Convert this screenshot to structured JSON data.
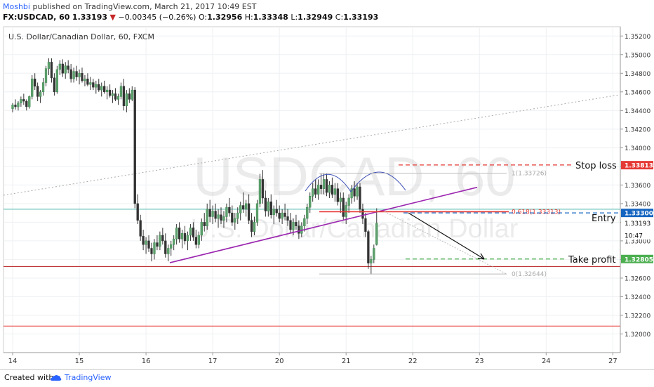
{
  "header": {
    "user": "Moshbi",
    "published_text": "published on TradingView.com, March 21, 2017 10:49 EST",
    "symbol": "FX:USDCAD, 60",
    "last": "1.33193",
    "change": "−0.00345 (−0.26%)",
    "o_label": "O:",
    "o": "1.32956",
    "h_label": "H:",
    "h": "1.33348",
    "l_label": "L:",
    "l": "1.32949",
    "c_label": "C:",
    "c": "1.33193"
  },
  "footer": {
    "created_with": "Created with",
    "brand": "TradingView"
  },
  "chart_data": {
    "type": "candlestick",
    "title": "U.S. Dollar/Canadian Dollar, 60, FXCM",
    "watermark_symbol": "USDCAD, 60",
    "watermark_name": "U.S. Dollar/Canadian Dollar",
    "ylim": [
      1.318,
      1.353
    ],
    "y_ticks": [
      "1.35200",
      "1.35000",
      "1.34800",
      "1.34600",
      "1.34400",
      "1.34200",
      "1.34000",
      "1.33800",
      "1.33600",
      "1.33400",
      "1.33200",
      "1.33000",
      "1.32800",
      "1.32600",
      "1.32400",
      "1.32200",
      "1.32000"
    ],
    "x_labels": [
      {
        "label": "14",
        "bar": 0
      },
      {
        "label": "15",
        "bar": 24
      },
      {
        "label": "16",
        "bar": 48
      },
      {
        "label": "17",
        "bar": 72
      },
      {
        "label": "20",
        "bar": 96
      },
      {
        "label": "21",
        "bar": 120
      },
      {
        "label": "22",
        "bar": 144
      },
      {
        "label": "23",
        "bar": 168
      },
      {
        "label": "24",
        "bar": 192
      },
      {
        "label": "27",
        "bar": 216
      }
    ],
    "candles": [
      [
        1.3442,
        1.3448,
        1.3438,
        1.3446
      ],
      [
        1.3446,
        1.3452,
        1.3441,
        1.3444
      ],
      [
        1.3444,
        1.345,
        1.344,
        1.3448
      ],
      [
        1.3448,
        1.3455,
        1.3444,
        1.3452
      ],
      [
        1.3452,
        1.3458,
        1.3446,
        1.345
      ],
      [
        1.345,
        1.3452,
        1.344,
        1.3444
      ],
      [
        1.3444,
        1.3456,
        1.3442,
        1.3455
      ],
      [
        1.3455,
        1.3478,
        1.3452,
        1.3474
      ],
      [
        1.3474,
        1.348,
        1.3462,
        1.3466
      ],
      [
        1.3466,
        1.347,
        1.345,
        1.3455
      ],
      [
        1.3455,
        1.3462,
        1.3448,
        1.346
      ],
      [
        1.346,
        1.3475,
        1.3456,
        1.347
      ],
      [
        1.347,
        1.3488,
        1.3466,
        1.3485
      ],
      [
        1.3485,
        1.3496,
        1.3478,
        1.3492
      ],
      [
        1.3492,
        1.3496,
        1.347,
        1.3475
      ],
      [
        1.3475,
        1.348,
        1.3456,
        1.346
      ],
      [
        1.346,
        1.3488,
        1.3458,
        1.3484
      ],
      [
        1.3484,
        1.3494,
        1.3478,
        1.349
      ],
      [
        1.349,
        1.3495,
        1.3476,
        1.348
      ],
      [
        1.348,
        1.3492,
        1.3474,
        1.3488
      ],
      [
        1.3488,
        1.3494,
        1.348,
        1.3484
      ],
      [
        1.3484,
        1.349,
        1.347,
        1.3474
      ],
      [
        1.3474,
        1.3486,
        1.347,
        1.3482
      ],
      [
        1.3482,
        1.3488,
        1.3472,
        1.3476
      ],
      [
        1.3476,
        1.3484,
        1.3468,
        1.348
      ],
      [
        1.348,
        1.3486,
        1.347,
        1.3472
      ],
      [
        1.3472,
        1.3478,
        1.3466,
        1.3474
      ],
      [
        1.3474,
        1.348,
        1.3466,
        1.3468
      ],
      [
        1.3468,
        1.3476,
        1.3462,
        1.347
      ],
      [
        1.347,
        1.3474,
        1.3462,
        1.3465
      ],
      [
        1.3465,
        1.3472,
        1.3458,
        1.3468
      ],
      [
        1.3468,
        1.3474,
        1.346,
        1.3462
      ],
      [
        1.3462,
        1.347,
        1.3455,
        1.3466
      ],
      [
        1.3466,
        1.3472,
        1.3458,
        1.346
      ],
      [
        1.346,
        1.3466,
        1.3452,
        1.3462
      ],
      [
        1.3462,
        1.3468,
        1.3454,
        1.3456
      ],
      [
        1.3456,
        1.3462,
        1.3448,
        1.3458
      ],
      [
        1.3458,
        1.3464,
        1.345,
        1.3452
      ],
      [
        1.3452,
        1.3458,
        1.3446,
        1.3455
      ],
      [
        1.3455,
        1.347,
        1.3452,
        1.3466
      ],
      [
        1.3466,
        1.3474,
        1.344,
        1.3445
      ],
      [
        1.3445,
        1.3462,
        1.3438,
        1.3458
      ],
      [
        1.3458,
        1.3464,
        1.3448,
        1.3452
      ],
      [
        1.3452,
        1.3466,
        1.345,
        1.3462
      ],
      [
        1.3462,
        1.3465,
        1.3335,
        1.334
      ],
      [
        1.334,
        1.335,
        1.3318,
        1.3322
      ],
      [
        1.3322,
        1.3328,
        1.33,
        1.3305
      ],
      [
        1.3305,
        1.3312,
        1.329,
        1.3296
      ],
      [
        1.3296,
        1.3304,
        1.3286,
        1.33
      ],
      [
        1.33,
        1.3306,
        1.3288,
        1.3292
      ],
      [
        1.3292,
        1.3298,
        1.3278,
        1.3286
      ],
      [
        1.3286,
        1.3302,
        1.328,
        1.3298
      ],
      [
        1.3298,
        1.3306,
        1.329,
        1.3294
      ],
      [
        1.3294,
        1.331,
        1.329,
        1.3306
      ],
      [
        1.3306,
        1.3314,
        1.3296,
        1.33
      ],
      [
        1.33,
        1.3308,
        1.3282,
        1.3286
      ],
      [
        1.3286,
        1.3296,
        1.3278,
        1.3292
      ],
      [
        1.3292,
        1.33,
        1.3284,
        1.3296
      ],
      [
        1.3296,
        1.3306,
        1.329,
        1.3302
      ],
      [
        1.3302,
        1.3318,
        1.3296,
        1.3314
      ],
      [
        1.3314,
        1.332,
        1.3298,
        1.3302
      ],
      [
        1.3302,
        1.3312,
        1.3292,
        1.3308
      ],
      [
        1.3308,
        1.3316,
        1.3296,
        1.33
      ],
      [
        1.33,
        1.331,
        1.329,
        1.3306
      ],
      [
        1.3306,
        1.3318,
        1.33,
        1.3314
      ],
      [
        1.3314,
        1.332,
        1.33,
        1.3304
      ],
      [
        1.3304,
        1.3312,
        1.3292,
        1.3296
      ],
      [
        1.3296,
        1.331,
        1.3292,
        1.3306
      ],
      [
        1.3306,
        1.3324,
        1.33,
        1.332
      ],
      [
        1.332,
        1.333,
        1.331,
        1.3316
      ],
      [
        1.3316,
        1.334,
        1.3312,
        1.3334
      ],
      [
        1.3334,
        1.3344,
        1.332,
        1.3326
      ],
      [
        1.3326,
        1.3338,
        1.3318,
        1.3332
      ],
      [
        1.3332,
        1.334,
        1.332,
        1.3324
      ],
      [
        1.3324,
        1.3334,
        1.3314,
        1.3328
      ],
      [
        1.3328,
        1.3336,
        1.3318,
        1.3322
      ],
      [
        1.3322,
        1.3332,
        1.3314,
        1.3326
      ],
      [
        1.3326,
        1.334,
        1.332,
        1.3336
      ],
      [
        1.3336,
        1.3346,
        1.3326,
        1.333
      ],
      [
        1.333,
        1.3338,
        1.3316,
        1.332
      ],
      [
        1.332,
        1.333,
        1.3312,
        1.3324
      ],
      [
        1.3324,
        1.3336,
        1.3318,
        1.333
      ],
      [
        1.333,
        1.3342,
        1.3322,
        1.3338
      ],
      [
        1.3338,
        1.3352,
        1.333,
        1.3334
      ],
      [
        1.3334,
        1.3344,
        1.3326,
        1.334
      ],
      [
        1.334,
        1.335,
        1.3318,
        1.3322
      ],
      [
        1.3322,
        1.333,
        1.3304,
        1.331
      ],
      [
        1.331,
        1.3326,
        1.3306,
        1.332
      ],
      [
        1.332,
        1.3344,
        1.3316,
        1.334
      ],
      [
        1.334,
        1.3372,
        1.3336,
        1.3366
      ],
      [
        1.3366,
        1.3376,
        1.334,
        1.3346
      ],
      [
        1.3346,
        1.3354,
        1.3326,
        1.3332
      ],
      [
        1.3332,
        1.3346,
        1.3326,
        1.3342
      ],
      [
        1.3342,
        1.335,
        1.3324,
        1.3328
      ],
      [
        1.3328,
        1.3338,
        1.3318,
        1.3334
      ],
      [
        1.3334,
        1.3344,
        1.3326,
        1.333
      ],
      [
        1.333,
        1.3338,
        1.332,
        1.3324
      ],
      [
        1.3324,
        1.3334,
        1.3318,
        1.333
      ],
      [
        1.333,
        1.334,
        1.3322,
        1.3326
      ],
      [
        1.3326,
        1.3334,
        1.3316,
        1.3322
      ],
      [
        1.3322,
        1.333,
        1.3308,
        1.3312
      ],
      [
        1.3312,
        1.3324,
        1.3306,
        1.332
      ],
      [
        1.332,
        1.3328,
        1.3312,
        1.3316
      ],
      [
        1.3316,
        1.3322,
        1.3302,
        1.3308
      ],
      [
        1.3308,
        1.332,
        1.3304,
        1.3316
      ],
      [
        1.3316,
        1.3328,
        1.331,
        1.3324
      ],
      [
        1.3324,
        1.334,
        1.3318,
        1.3336
      ],
      [
        1.3336,
        1.3352,
        1.333,
        1.3348
      ],
      [
        1.3348,
        1.3362,
        1.3342,
        1.3356
      ],
      [
        1.3356,
        1.3366,
        1.3346,
        1.335
      ],
      [
        1.335,
        1.3366,
        1.3344,
        1.336
      ],
      [
        1.336,
        1.3372,
        1.335,
        1.3356
      ],
      [
        1.3356,
        1.3372,
        1.335,
        1.3366
      ],
      [
        1.3366,
        1.3372,
        1.3348,
        1.3352
      ],
      [
        1.3352,
        1.3364,
        1.3346,
        1.336
      ],
      [
        1.336,
        1.3368,
        1.3346,
        1.335
      ],
      [
        1.335,
        1.3362,
        1.3342,
        1.3356
      ],
      [
        1.3356,
        1.3362,
        1.3338,
        1.3342
      ],
      [
        1.3342,
        1.3352,
        1.333,
        1.3346
      ],
      [
        1.3346,
        1.3352,
        1.3322,
        1.3326
      ],
      [
        1.3326,
        1.3342,
        1.3318,
        1.3338
      ],
      [
        1.3338,
        1.335,
        1.333,
        1.3346
      ],
      [
        1.3346,
        1.336,
        1.334,
        1.3356
      ],
      [
        1.3356,
        1.3364,
        1.3342,
        1.3348
      ],
      [
        1.3348,
        1.3362,
        1.3344,
        1.3358
      ],
      [
        1.3358,
        1.3362,
        1.333,
        1.3334
      ],
      [
        1.3334,
        1.334,
        1.3318,
        1.3324
      ],
      [
        1.3324,
        1.333,
        1.3304,
        1.331
      ],
      [
        1.331,
        1.3312,
        1.327,
        1.3276
      ],
      [
        1.3276,
        1.3284,
        1.3264,
        1.328
      ],
      [
        1.328,
        1.3296,
        1.3276,
        1.3292
      ],
      [
        1.3296,
        1.3335,
        1.3295,
        1.3319
      ]
    ],
    "price_labels": [
      {
        "value": 1.33813,
        "text": "1.33813",
        "color": "#e53935"
      },
      {
        "value": 1.333,
        "text": "1.33300",
        "color": "#1565c0"
      },
      {
        "value": 1.33193,
        "text": "1.33193",
        "color": "#ffffff"
      },
      {
        "value": 1.3306,
        "text": "10:47",
        "color": "#ffffff"
      },
      {
        "value": 1.32805,
        "text": "1.32805",
        "color": "#2e7d32"
      }
    ],
    "annotations": {
      "stop_loss": "Stop loss",
      "entry": "Entry",
      "take_profit": "Take profit",
      "fib_1": "1(1.33726)",
      "fib_0618": "0.618(1.33313)",
      "fib_0": "0(1.32644)"
    }
  }
}
